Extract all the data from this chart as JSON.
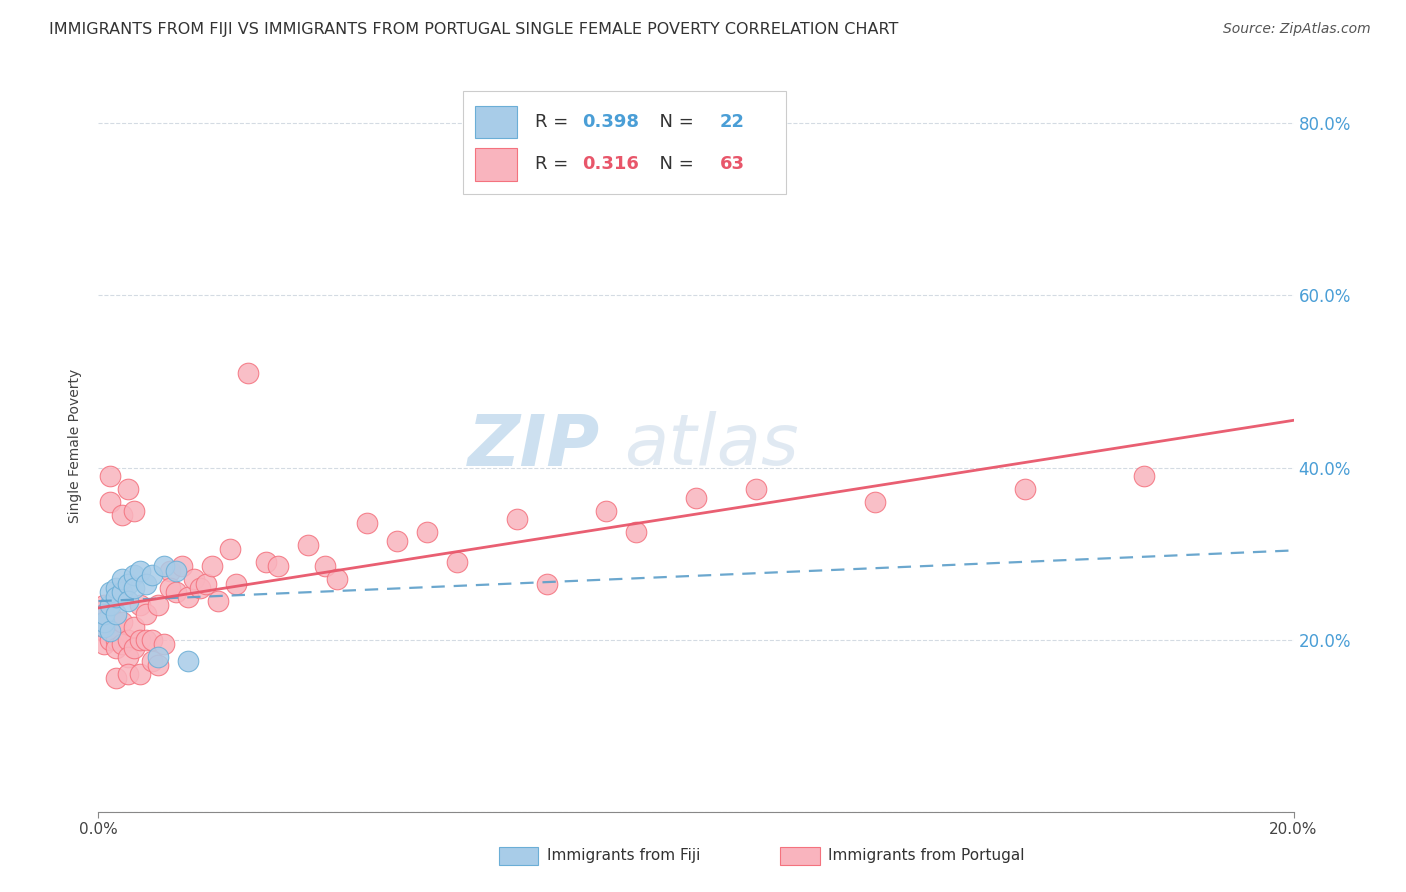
{
  "title": "IMMIGRANTS FROM FIJI VS IMMIGRANTS FROM PORTUGAL SINGLE FEMALE POVERTY CORRELATION CHART",
  "source": "Source: ZipAtlas.com",
  "ylabel": "Single Female Poverty",
  "legend_fiji": "Immigrants from Fiji",
  "legend_portugal": "Immigrants from Portugal",
  "fiji_R": 0.398,
  "fiji_N": 22,
  "portugal_R": 0.316,
  "portugal_N": 63,
  "xlim": [
    0.0,
    0.2
  ],
  "ylim": [
    0.0,
    0.85
  ],
  "yticks": [
    0.2,
    0.4,
    0.6,
    0.8
  ],
  "xticks": [
    0.0,
    0.2
  ],
  "color_fiji": "#a8cce8",
  "color_fiji_edge": "#6baed6",
  "color_portugal": "#f9b4be",
  "color_portugal_edge": "#f4727e",
  "line_fiji_color": "#5b9ec9",
  "line_portugal_color": "#e8566a",
  "background_color": "#ffffff",
  "fiji_x": [
    0.001,
    0.001,
    0.001,
    0.002,
    0.002,
    0.002,
    0.003,
    0.003,
    0.003,
    0.004,
    0.004,
    0.005,
    0.005,
    0.006,
    0.006,
    0.007,
    0.008,
    0.009,
    0.01,
    0.011,
    0.013,
    0.015
  ],
  "fiji_y": [
    0.215,
    0.22,
    0.23,
    0.21,
    0.24,
    0.255,
    0.23,
    0.26,
    0.25,
    0.255,
    0.27,
    0.265,
    0.245,
    0.275,
    0.26,
    0.28,
    0.265,
    0.275,
    0.18,
    0.285,
    0.28,
    0.175
  ],
  "portugal_x": [
    0.001,
    0.001,
    0.001,
    0.001,
    0.002,
    0.002,
    0.002,
    0.002,
    0.003,
    0.003,
    0.003,
    0.003,
    0.004,
    0.004,
    0.004,
    0.005,
    0.005,
    0.005,
    0.005,
    0.006,
    0.006,
    0.006,
    0.007,
    0.007,
    0.007,
    0.008,
    0.008,
    0.009,
    0.009,
    0.01,
    0.01,
    0.011,
    0.012,
    0.012,
    0.013,
    0.014,
    0.015,
    0.016,
    0.017,
    0.018,
    0.019,
    0.02,
    0.022,
    0.023,
    0.025,
    0.028,
    0.03,
    0.035,
    0.038,
    0.04,
    0.045,
    0.05,
    0.055,
    0.06,
    0.07,
    0.075,
    0.085,
    0.09,
    0.1,
    0.11,
    0.13,
    0.155,
    0.175
  ],
  "portugal_y": [
    0.22,
    0.24,
    0.21,
    0.195,
    0.23,
    0.2,
    0.39,
    0.36,
    0.22,
    0.2,
    0.155,
    0.19,
    0.345,
    0.22,
    0.195,
    0.375,
    0.2,
    0.18,
    0.16,
    0.19,
    0.215,
    0.35,
    0.24,
    0.2,
    0.16,
    0.23,
    0.2,
    0.175,
    0.2,
    0.24,
    0.17,
    0.195,
    0.28,
    0.26,
    0.255,
    0.285,
    0.25,
    0.27,
    0.26,
    0.265,
    0.285,
    0.245,
    0.305,
    0.265,
    0.51,
    0.29,
    0.285,
    0.31,
    0.285,
    0.27,
    0.335,
    0.315,
    0.325,
    0.29,
    0.34,
    0.265,
    0.35,
    0.325,
    0.365,
    0.375,
    0.36,
    0.375,
    0.39
  ],
  "watermark_zip": "ZIP",
  "watermark_atlas": "atlas",
  "title_fontsize": 11.5,
  "axis_label_fontsize": 10,
  "tick_fontsize": 11,
  "source_fontsize": 10,
  "watermark_fontsize": 52
}
